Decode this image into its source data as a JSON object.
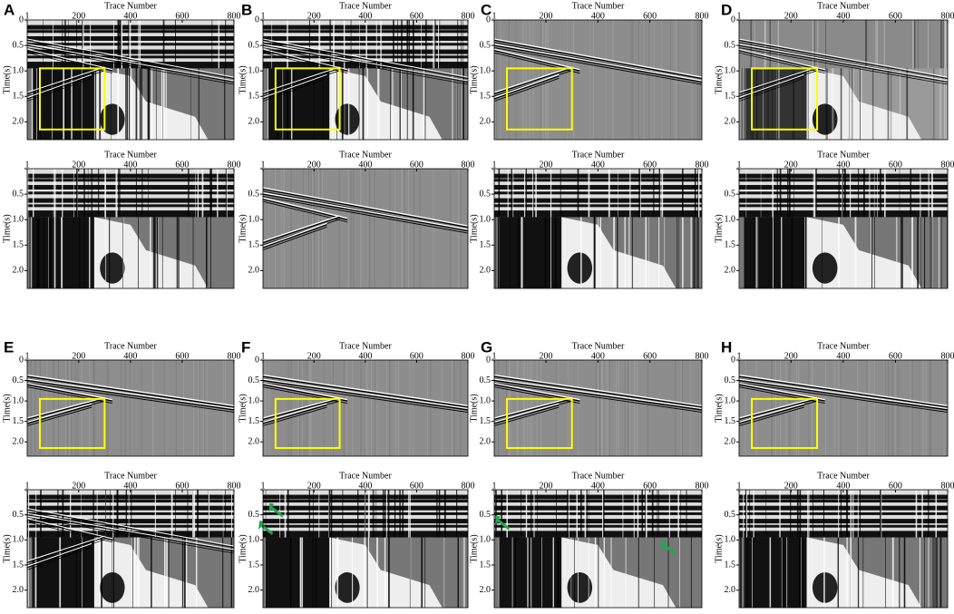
{
  "figure": {
    "x_axis_title": "Trace Number",
    "y_axis_title": "Time(s)",
    "xlim": [
      1,
      800
    ],
    "xticks": [
      1,
      200,
      400,
      600,
      800
    ],
    "ylim": [
      0,
      2.35
    ],
    "yticks": [
      0,
      0.5,
      {
        "value": 1,
        "label": "1.0"
      },
      1.5,
      {
        "value": 2,
        "label": "2.0"
      }
    ],
    "panels": [
      {
        "label": "A"
      },
      {
        "label": "B"
      },
      {
        "label": "C"
      },
      {
        "label": "D"
      },
      {
        "label": "E"
      },
      {
        "label": "F"
      },
      {
        "label": "G"
      },
      {
        "label": "H"
      }
    ]
  }
}
